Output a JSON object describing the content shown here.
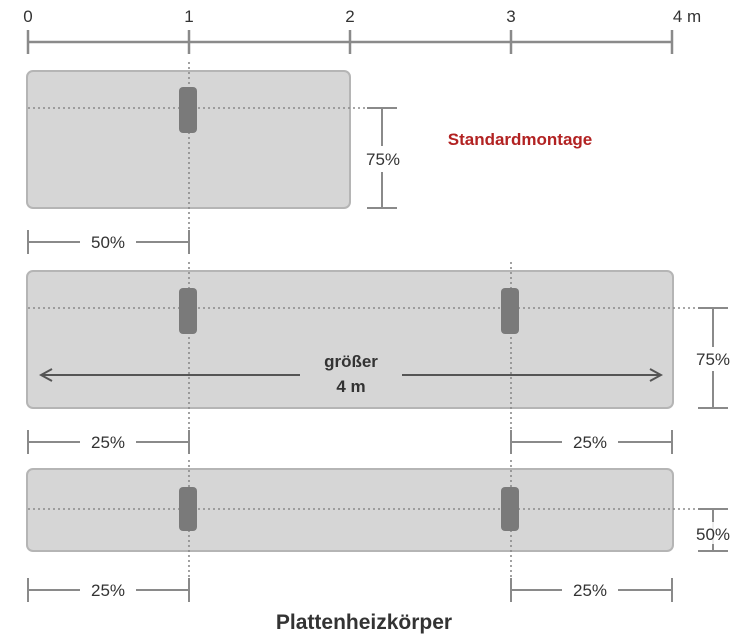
{
  "scale": {
    "ticks": [
      "0",
      "1",
      "2",
      "3",
      "4 m"
    ]
  },
  "panels": [
    {
      "title": "Standardmontage",
      "height_percent": "75%",
      "spacing": [
        "50%"
      ]
    },
    {
      "arrow_label_line1": "größer",
      "arrow_label_line2": "4 m",
      "height_percent": "75%",
      "spacing": [
        "25%",
        "25%"
      ]
    },
    {
      "height_percent": "50%",
      "spacing": [
        "25%",
        "25%"
      ]
    }
  ],
  "caption": "Plattenheizkörper",
  "colors": {
    "panel_fill": "#d6d6d6",
    "panel_stroke": "#b5b5b5",
    "bracket": "#7a7a7a",
    "line": "#8a8a8a",
    "accent": "#b22222"
  }
}
